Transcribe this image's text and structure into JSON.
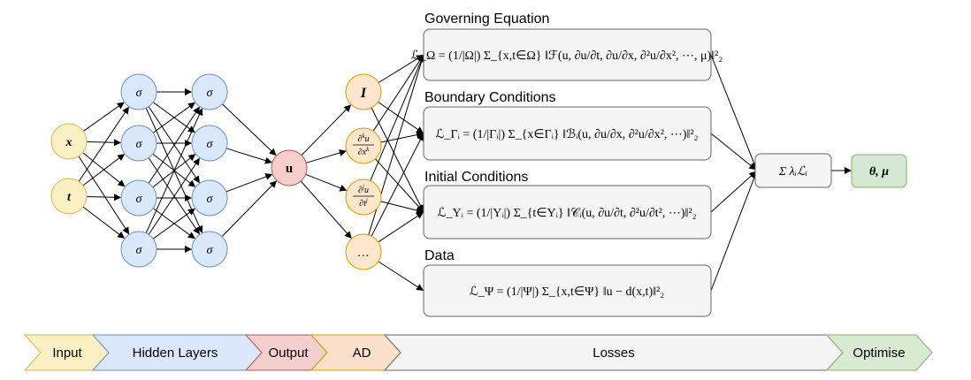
{
  "nodes": {
    "input_x": "x",
    "input_t": "t",
    "hidden_sigma": "σ",
    "output_u": "u",
    "ad_identity": "I",
    "ad_dk": "∂ᵏu/∂xᵏ",
    "ad_dj": "∂ʲu/∂tʲ",
    "ad_more": "…"
  },
  "loss_sections": [
    {
      "title": "Governing Equation",
      "formula": "ℒ_Ω = (1/|Ω|) Σ_{x,t∈Ω} ‖ℱ(u, ∂u/∂t, ∂u/∂x, ∂²u/∂x², ⋯, μ)‖²₂"
    },
    {
      "title": "Boundary Conditions",
      "formula": "ℒ_Γᵢ = (1/|Γᵢ|) Σ_{x∈Γᵢ} ‖ℬᵢ(u, ∂u/∂x, ∂²u/∂x², ⋯)‖²₂"
    },
    {
      "title": "Initial Conditions",
      "formula": "ℒ_Υᵢ = (1/|Υᵢ|) Σ_{t∈Υᵢ} ‖𝒞ᵢ(u, ∂u/∂t, ∂²u/∂t², ⋯)‖²₂"
    },
    {
      "title": "Data",
      "formula": "ℒ_Ψ = (1/|Ψ|) Σ_{x,t∈Ψ} ‖u − d(x,t)‖²₂"
    }
  ],
  "sum_node": "Σ λᵢℒᵢ",
  "params_node": "θ, μ",
  "stages": [
    {
      "label": "Input",
      "color": "#fbf0c4"
    },
    {
      "label": "Hidden Layers",
      "color": "#dbe7fa"
    },
    {
      "label": "Output",
      "color": "#f5cece"
    },
    {
      "label": "AD",
      "color": "#fbe0cc"
    },
    {
      "label": "Losses",
      "color": "#f4f4f4"
    },
    {
      "label": "Optimise",
      "color": "#d9ead3"
    }
  ],
  "colors": {
    "input_fill": "#fbf0c4",
    "input_stroke": "#d6b656",
    "hidden_fill": "#dae8fc",
    "hidden_stroke": "#6c8ebf",
    "output_fill": "#f8cecc",
    "output_stroke": "#b85450",
    "ad_fill": "#ffe6cc",
    "ad_stroke": "#d79b00",
    "loss_fill": "#f5f5f5",
    "loss_stroke": "#666666",
    "optim_fill": "#d5e8d4",
    "optim_stroke": "#82b366"
  }
}
